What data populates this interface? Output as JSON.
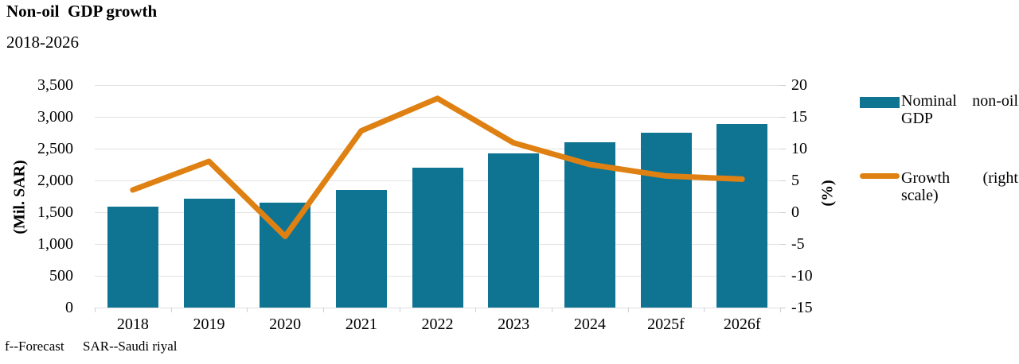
{
  "header": {
    "title": "Non-oil  GDP growth",
    "subtitle": "2018-2026"
  },
  "legend": {
    "items": [
      {
        "label": "Nominal non-oil GDP",
        "swatch": "bar-swatch",
        "color": "#0f7392"
      },
      {
        "label": "Growth (right scale)",
        "swatch": "line-swatch",
        "color": "#df8112"
      }
    ]
  },
  "footnotes": {
    "forecast": "f--Forecast",
    "sar": "SAR--Saudi riyal"
  },
  "colors": {
    "bar": "#0f7392",
    "line": "#df8112",
    "gridline": "#e2e2e2",
    "tick": "#cfcfcf",
    "text": "#000000",
    "background": "#ffffff"
  },
  "chart_data": {
    "type": "bar",
    "title": "Non-oil GDP growth",
    "subtitle": "2018-2026",
    "categories": [
      "2018",
      "2019",
      "2020",
      "2021",
      "2022",
      "2023",
      "2024",
      "2025f",
      "2026f"
    ],
    "series": [
      {
        "name": "Nominal non-oil GDP",
        "type": "bar",
        "axis": "left",
        "unit": "Mil. SAR",
        "values": [
          1590,
          1715,
          1645,
          1855,
          2195,
          2425,
          2600,
          2750,
          2890
        ]
      },
      {
        "name": "Growth (right scale)",
        "type": "line",
        "axis": "right",
        "unit": "%",
        "values": [
          3.5,
          8.0,
          -3.8,
          12.8,
          17.9,
          10.9,
          7.5,
          5.7,
          5.2
        ]
      }
    ],
    "left_axis": {
      "label": "(Mil. SAR)",
      "ticks": [
        "3,500",
        "3,000",
        "2,500",
        "2,000",
        "1,500",
        "1,000",
        "500",
        "0"
      ],
      "min": 0,
      "max": 3500,
      "step": 500
    },
    "right_axis": {
      "label": "(%)",
      "ticks": [
        "20",
        "15",
        "10",
        "5",
        "0",
        "-5",
        "-10",
        "-15"
      ],
      "min": -15,
      "max": 20,
      "step": 5
    },
    "grid": "horizontal",
    "legend_position": "right"
  }
}
